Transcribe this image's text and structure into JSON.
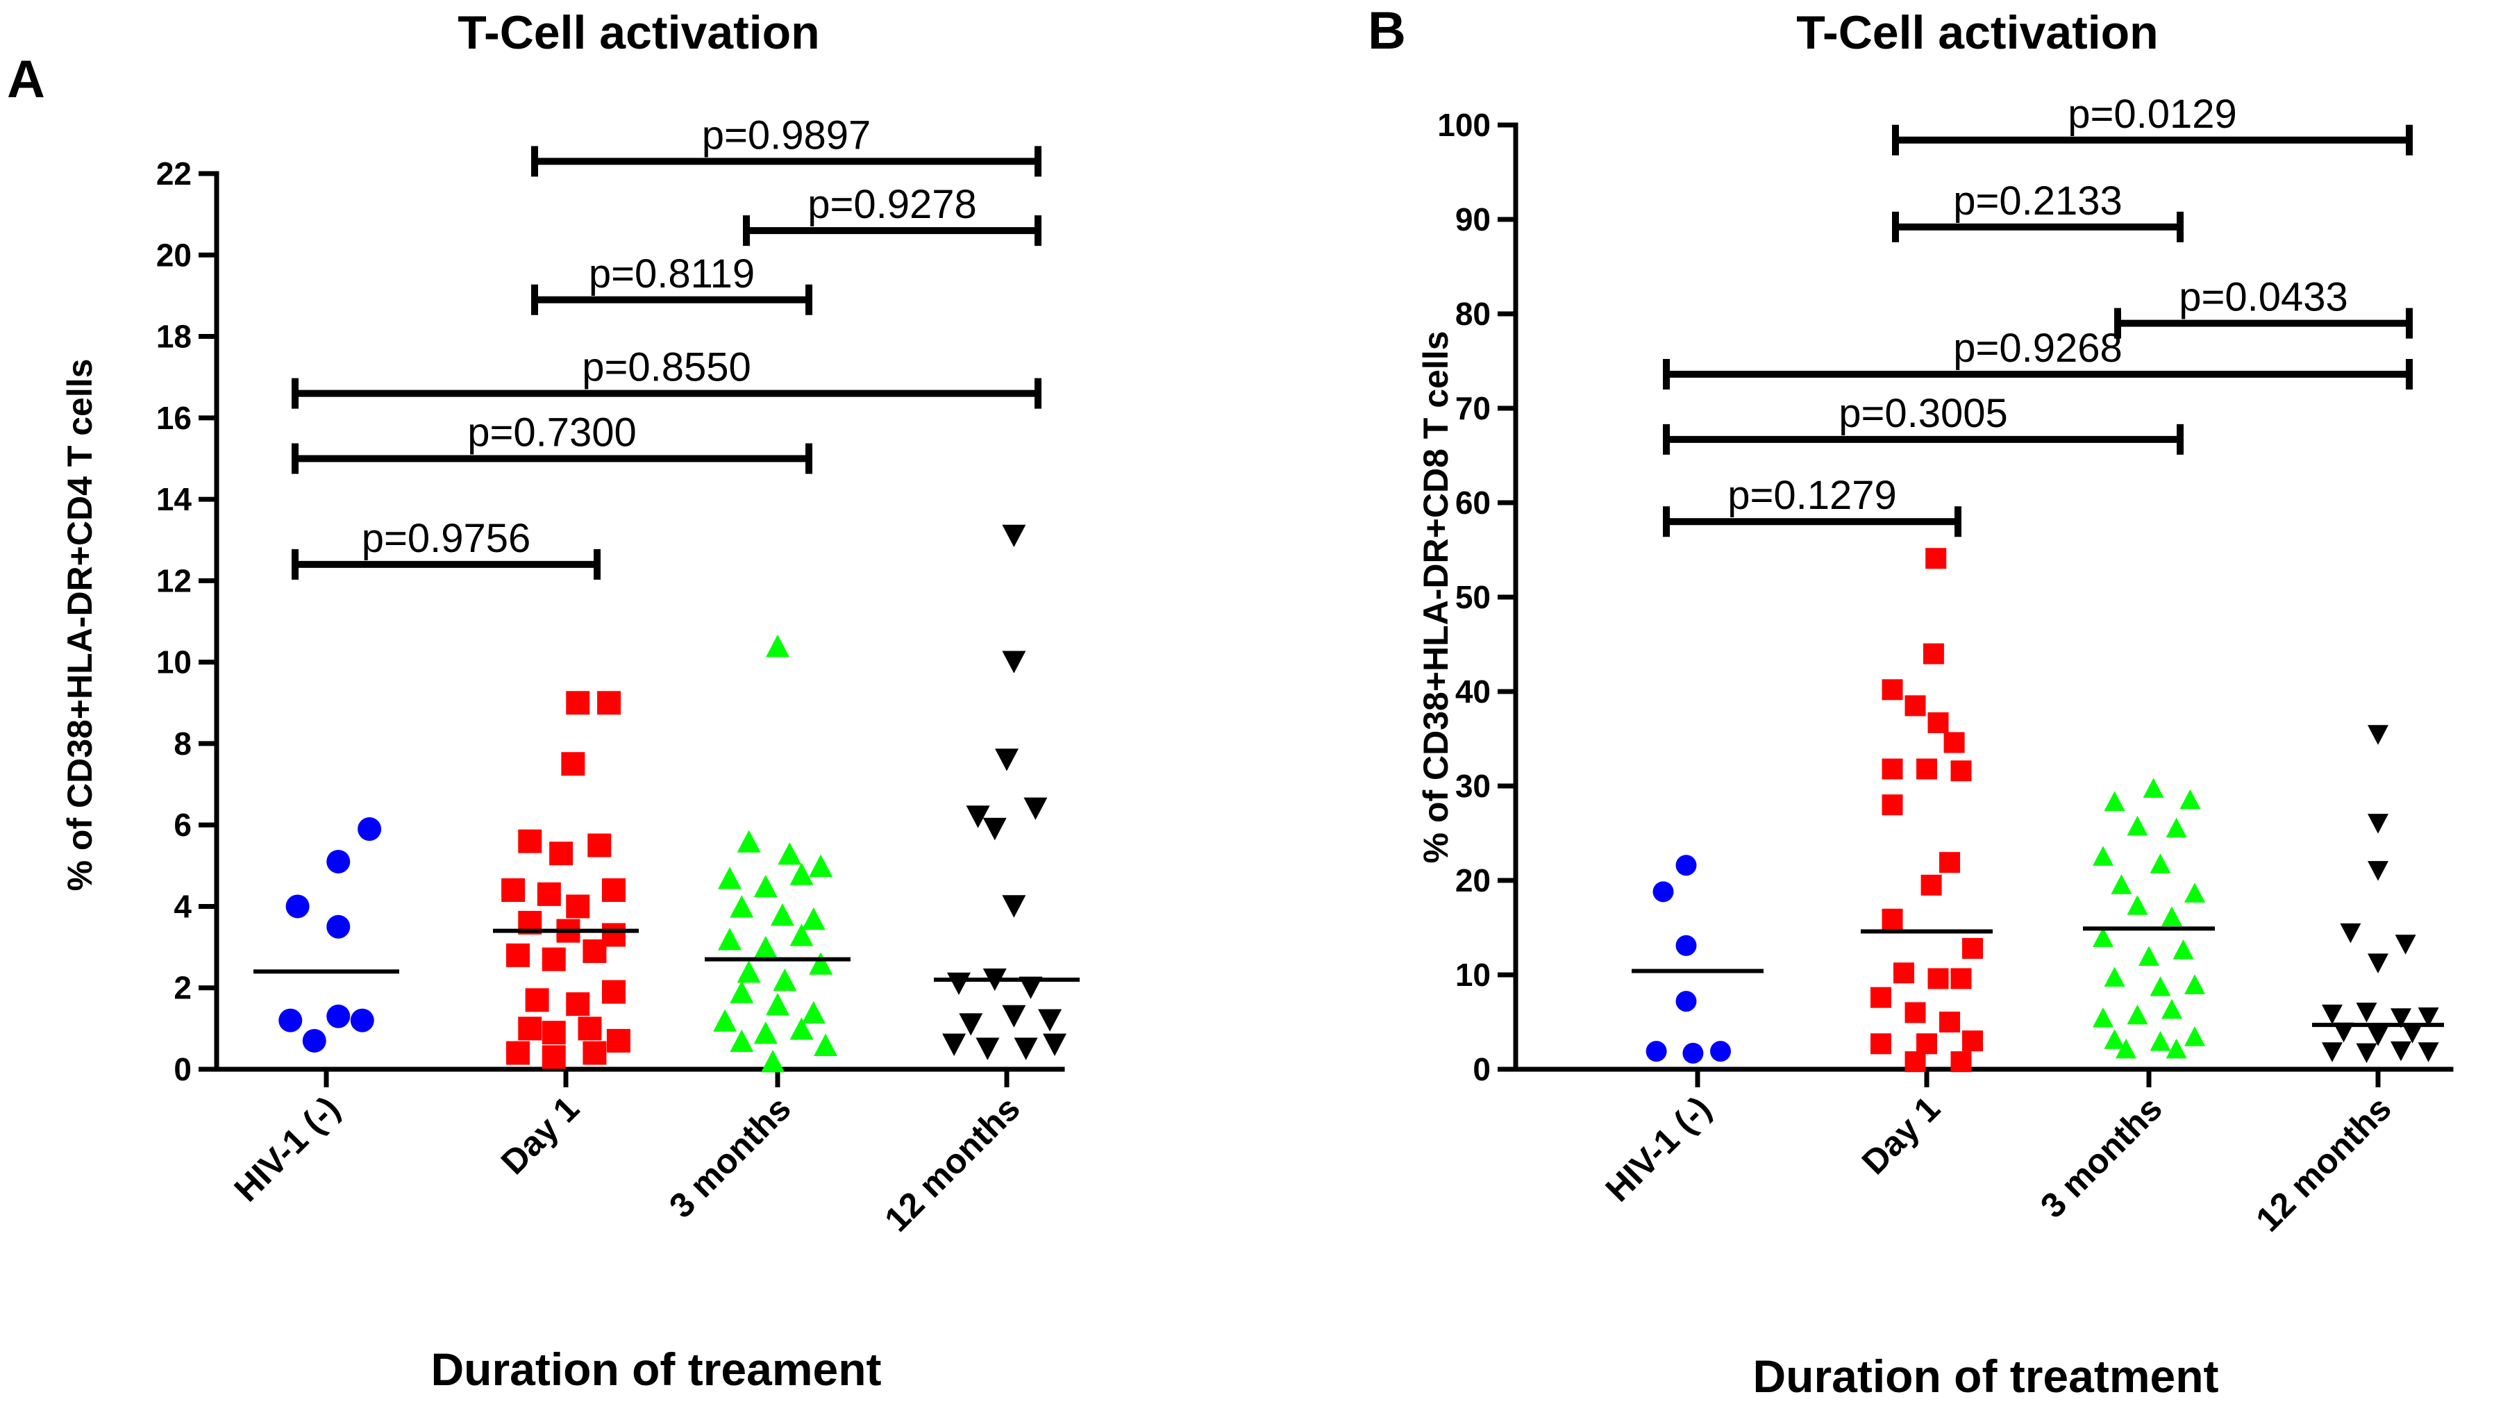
{
  "chart_data": [
    {
      "panel": "A",
      "type": "scatter",
      "title": "T-Cell activation",
      "ylabel": "% of CD38+HLA-DR+CD4 T cells",
      "xlabel": "Duration of treament",
      "ylim": [
        0,
        22
      ],
      "yticks": [
        0,
        2,
        4,
        6,
        8,
        10,
        12,
        14,
        16,
        18,
        20,
        22
      ],
      "categories": [
        "HIV-1 (-)",
        "Day 1",
        "3 months",
        "12 months"
      ],
      "series": [
        {
          "name": "HIV-1 (-)",
          "marker": "circle",
          "color": "#0000ff",
          "median": 2.4,
          "points": [
            [
              -0.15,
              1.2
            ],
            [
              -0.05,
              0.7
            ],
            [
              0.05,
              1.3
            ],
            [
              0.15,
              1.2
            ],
            [
              -0.12,
              4.0
            ],
            [
              0.05,
              3.5
            ],
            [
              0.05,
              5.1
            ],
            [
              0.18,
              5.9
            ]
          ]
        },
        {
          "name": "Day 1",
          "marker": "square",
          "color": "#ff0000",
          "median": 3.4,
          "points": [
            [
              0.05,
              9.0
            ],
            [
              0.18,
              9.0
            ],
            [
              0.03,
              7.5
            ],
            [
              -0.15,
              5.6
            ],
            [
              -0.02,
              5.3
            ],
            [
              0.14,
              5.5
            ],
            [
              -0.22,
              4.4
            ],
            [
              -0.07,
              4.3
            ],
            [
              0.05,
              4.0
            ],
            [
              0.2,
              4.4
            ],
            [
              -0.15,
              3.6
            ],
            [
              0.01,
              3.4
            ],
            [
              0.2,
              3.3
            ],
            [
              -0.2,
              2.8
            ],
            [
              -0.05,
              2.7
            ],
            [
              0.12,
              2.9
            ],
            [
              -0.12,
              1.7
            ],
            [
              0.05,
              1.6
            ],
            [
              0.2,
              1.9
            ],
            [
              -0.15,
              1.0
            ],
            [
              -0.05,
              0.9
            ],
            [
              0.1,
              1.0
            ],
            [
              -0.2,
              0.4
            ],
            [
              -0.05,
              0.3
            ],
            [
              0.12,
              0.4
            ],
            [
              0.22,
              0.7
            ]
          ]
        },
        {
          "name": "3 months",
          "marker": "triangle-up",
          "color": "#00ff00",
          "median": 2.7,
          "points": [
            [
              0.0,
              10.4
            ],
            [
              -0.12,
              5.6
            ],
            [
              0.05,
              5.3
            ],
            [
              0.18,
              5.0
            ],
            [
              -0.2,
              4.7
            ],
            [
              -0.05,
              4.5
            ],
            [
              0.1,
              4.8
            ],
            [
              -0.15,
              4.0
            ],
            [
              0.02,
              3.8
            ],
            [
              0.15,
              3.7
            ],
            [
              -0.2,
              3.2
            ],
            [
              -0.05,
              3.0
            ],
            [
              0.1,
              3.3
            ],
            [
              -0.12,
              2.4
            ],
            [
              0.03,
              2.2
            ],
            [
              0.18,
              2.6
            ],
            [
              -0.15,
              1.9
            ],
            [
              0.0,
              1.6
            ],
            [
              0.15,
              1.4
            ],
            [
              -0.22,
              1.2
            ],
            [
              -0.05,
              0.9
            ],
            [
              0.1,
              1.0
            ],
            [
              -0.15,
              0.7
            ],
            [
              0.2,
              0.6
            ],
            [
              -0.02,
              0.2
            ]
          ]
        },
        {
          "name": "12 months",
          "marker": "triangle-down",
          "color": "#000000",
          "median": 2.2,
          "points": [
            [
              0.03,
              13.1
            ],
            [
              0.03,
              10.0
            ],
            [
              0.0,
              7.6
            ],
            [
              -0.12,
              6.2
            ],
            [
              0.12,
              6.4
            ],
            [
              -0.05,
              5.9
            ],
            [
              0.03,
              4.0
            ],
            [
              -0.2,
              2.1
            ],
            [
              -0.05,
              2.2
            ],
            [
              0.1,
              2.0
            ],
            [
              -0.15,
              1.1
            ],
            [
              0.03,
              1.3
            ],
            [
              0.18,
              1.2
            ],
            [
              -0.22,
              0.6
            ],
            [
              -0.08,
              0.5
            ],
            [
              0.08,
              0.5
            ],
            [
              0.2,
              0.6
            ]
          ]
        }
      ],
      "comparisons": [
        {
          "from": 0,
          "to": 1,
          "label": "p=0.9756",
          "y": 12.4
        },
        {
          "from": 0,
          "to": 2,
          "label": "p=0.7300",
          "y": 15.0
        },
        {
          "from": 0,
          "to": 3,
          "label": "p=0.8550",
          "y": 16.6
        },
        {
          "from": 1,
          "to": 2,
          "label": "p=0.8119",
          "y": 18.9
        },
        {
          "from": 2,
          "to": 3,
          "label": "p=0.9278",
          "y": 20.6
        },
        {
          "from": 1,
          "to": 3,
          "label": "p=0.9897",
          "y": 22.3
        }
      ]
    },
    {
      "panel": "B",
      "type": "scatter",
      "title": "T-Cell activation",
      "ylabel": "% of CD38+HLA-DR+CD8 T cells",
      "xlabel": "Duration of treatment",
      "ylim": [
        0,
        100
      ],
      "yticks": [
        0,
        10,
        20,
        30,
        40,
        50,
        60,
        70,
        80,
        90,
        100
      ],
      "categories": [
        "HIV-1 (-)",
        "Day 1",
        "3 months",
        "12 months"
      ],
      "series": [
        {
          "name": "HIV-1 (-)",
          "marker": "circle",
          "color": "#0000ff",
          "median": 10.4,
          "points": [
            [
              -0.05,
              21.6
            ],
            [
              -0.15,
              18.8
            ],
            [
              -0.05,
              13.1
            ],
            [
              -0.05,
              7.2
            ],
            [
              -0.18,
              1.9
            ],
            [
              -0.02,
              1.7
            ],
            [
              0.1,
              1.9
            ]
          ]
        },
        {
          "name": "Day 1",
          "marker": "square",
          "color": "#ff0000",
          "median": 14.6,
          "points": [
            [
              0.04,
              54.1
            ],
            [
              0.03,
              44.0
            ],
            [
              -0.15,
              40.2
            ],
            [
              -0.05,
              38.5
            ],
            [
              0.05,
              36.7
            ],
            [
              0.12,
              34.6
            ],
            [
              -0.15,
              31.8
            ],
            [
              0.0,
              31.8
            ],
            [
              0.15,
              31.6
            ],
            [
              -0.15,
              28.0
            ],
            [
              0.1,
              21.9
            ],
            [
              0.02,
              19.5
            ],
            [
              -0.15,
              15.9
            ],
            [
              0.2,
              12.8
            ],
            [
              -0.1,
              10.2
            ],
            [
              0.05,
              9.6
            ],
            [
              0.15,
              9.6
            ],
            [
              -0.2,
              7.6
            ],
            [
              -0.05,
              6.0
            ],
            [
              0.1,
              5.0
            ],
            [
              -0.2,
              2.7
            ],
            [
              0.0,
              2.7
            ],
            [
              0.2,
              3.0
            ],
            [
              -0.05,
              0.8
            ],
            [
              0.15,
              0.8
            ]
          ]
        },
        {
          "name": "3 months",
          "marker": "triangle-up",
          "color": "#00ff00",
          "median": 14.9,
          "points": [
            [
              0.02,
              29.8
            ],
            [
              -0.15,
              28.4
            ],
            [
              0.18,
              28.6
            ],
            [
              -0.05,
              25.8
            ],
            [
              0.12,
              25.6
            ],
            [
              -0.2,
              22.6
            ],
            [
              0.05,
              21.8
            ],
            [
              -0.12,
              19.6
            ],
            [
              0.2,
              18.7
            ],
            [
              -0.05,
              17.4
            ],
            [
              0.1,
              16.2
            ],
            [
              -0.2,
              14.0
            ],
            [
              0.0,
              12.0
            ],
            [
              0.15,
              12.7
            ],
            [
              -0.15,
              9.8
            ],
            [
              0.05,
              8.8
            ],
            [
              0.2,
              9.0
            ],
            [
              -0.2,
              5.5
            ],
            [
              -0.05,
              5.8
            ],
            [
              0.1,
              6.4
            ],
            [
              -0.15,
              3.2
            ],
            [
              0.05,
              3.0
            ],
            [
              0.2,
              3.5
            ],
            [
              -0.1,
              2.2
            ],
            [
              0.12,
              2.2
            ]
          ]
        },
        {
          "name": "12 months",
          "marker": "triangle-down",
          "color": "#000000",
          "median": 4.7,
          "points": [
            [
              0.0,
              35.4
            ],
            [
              0.0,
              26.0
            ],
            [
              0.0,
              21.0
            ],
            [
              -0.12,
              14.4
            ],
            [
              0.12,
              13.2
            ],
            [
              0.0,
              11.2
            ],
            [
              -0.2,
              5.8
            ],
            [
              -0.05,
              6.0
            ],
            [
              0.1,
              5.4
            ],
            [
              0.22,
              5.5
            ],
            [
              -0.15,
              3.9
            ],
            [
              0.0,
              3.5
            ],
            [
              0.15,
              3.8
            ],
            [
              -0.2,
              1.8
            ],
            [
              -0.05,
              1.7
            ],
            [
              0.1,
              1.9
            ],
            [
              0.22,
              1.8
            ]
          ]
        }
      ],
      "comparisons": [
        {
          "from": 0,
          "to": 1,
          "label": "p=0.1279",
          "y": 58.0
        },
        {
          "from": 0,
          "to": 2,
          "label": "p=0.3005",
          "y": 66.7
        },
        {
          "from": 0,
          "to": 3,
          "label": "p=0.9268",
          "y": 73.6
        },
        {
          "from": 2,
          "to": 3,
          "label": "p=0.0433",
          "y": 79.0
        },
        {
          "from": 1,
          "to": 2,
          "label": "p=0.2133",
          "y": 89.2
        },
        {
          "from": 1,
          "to": 3,
          "label": "p=0.0129",
          "y": 98.4
        }
      ]
    }
  ]
}
